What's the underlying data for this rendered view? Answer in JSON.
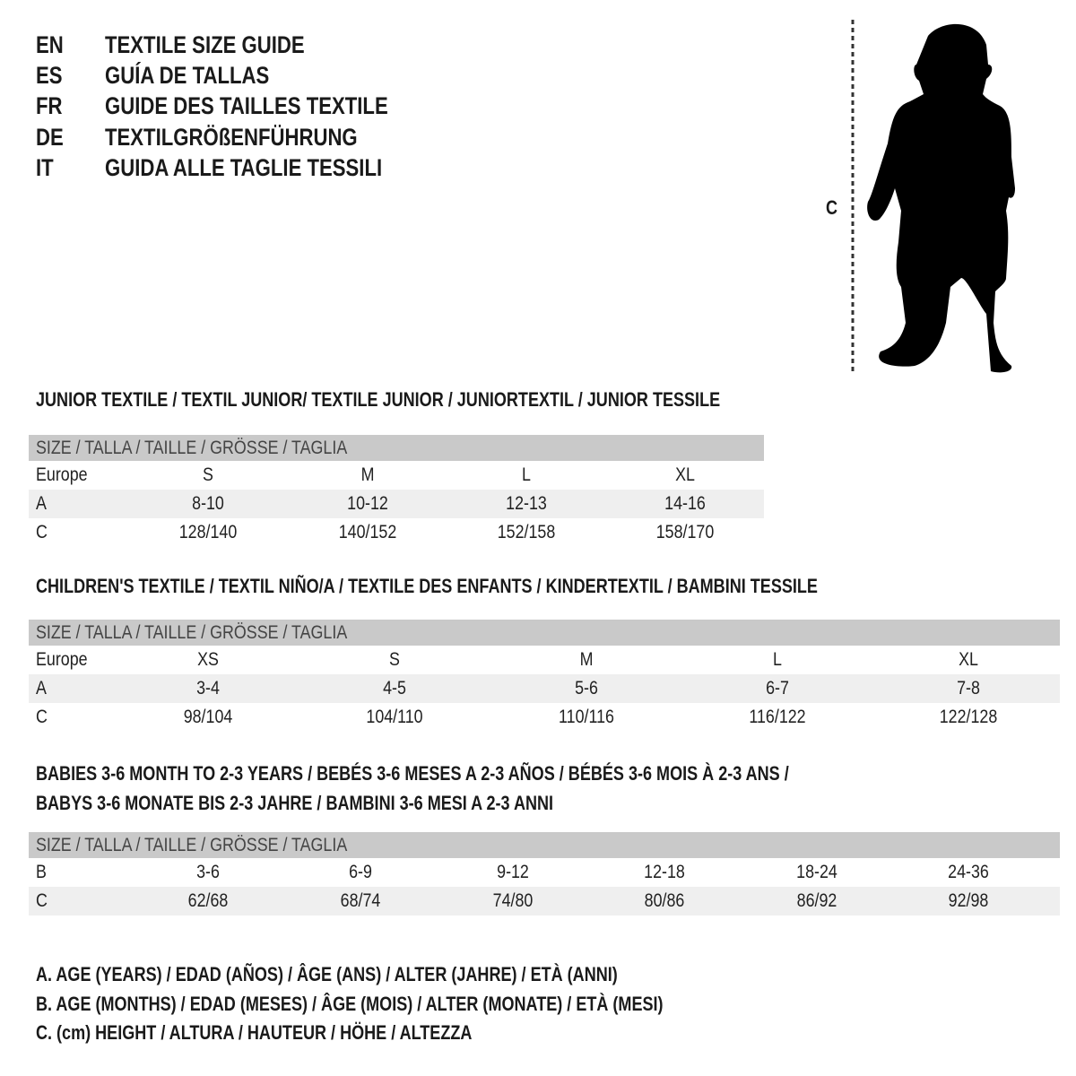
{
  "titles": [
    {
      "lang": "EN",
      "text": "TEXTILE SIZE GUIDE"
    },
    {
      "lang": "ES",
      "text": "GUÍA DE TALLAS"
    },
    {
      "lang": "FR",
      "text": "GUIDE DES TAILLES TEXTILE"
    },
    {
      "lang": "DE",
      "text": "TEXTILGRÖßENFÜHRUNG"
    },
    {
      "lang": "IT",
      "text": "GUIDA ALLE TAGLIE TESSILI"
    }
  ],
  "figure": {
    "label": "C"
  },
  "sections": [
    {
      "heading": [
        "JUNIOR TEXTILE / TEXTIL JUNIOR/ TEXTILE JUNIOR / JUNIORTEXTIL / JUNIOR TESSILE"
      ],
      "header": "SIZE / TALLA / TAILLE / GRÖSSE / TAGLIA",
      "rows": [
        {
          "label": "Europe",
          "values": [
            "S",
            "M",
            "L",
            "XL"
          ]
        },
        {
          "label": "A",
          "values": [
            "8-10",
            "10-12",
            "12-13",
            "14-16"
          ]
        },
        {
          "label": "C",
          "values": [
            "128/140",
            "140/152",
            "152/158",
            "158/170"
          ]
        }
      ]
    },
    {
      "heading": [
        "CHILDREN'S TEXTILE / TEXTIL NIÑO/A / TEXTILE DES ENFANTS / KINDERTEXTIL / BAMBINI TESSILE"
      ],
      "header": "SIZE / TALLA / TAILLE / GRÖSSE / TAGLIA",
      "rows": [
        {
          "label": "Europe",
          "values": [
            "XS",
            "S",
            "M",
            "L",
            "XL"
          ]
        },
        {
          "label": "A",
          "values": [
            "3-4",
            "4-5",
            "5-6",
            "6-7",
            "7-8"
          ]
        },
        {
          "label": "C",
          "values": [
            "98/104",
            "104/110",
            "110/116",
            "116/122",
            "122/128"
          ]
        }
      ]
    },
    {
      "heading": [
        "BABIES 3-6 MONTH TO 2-3 YEARS / BEBÉS 3-6 MESES A 2-3 AÑOS / BÉBÉS 3-6 MOIS À 2-3 ANS /",
        "BABYS 3-6 MONATE BIS 2-3 JAHRE / BAMBINI 3-6 MESI A 2-3 ANNI"
      ],
      "header": "SIZE / TALLA / TAILLE / GRÖSSE / TAGLIA",
      "rows": [
        {
          "label": "B",
          "values": [
            "3-6",
            "6-9",
            "9-12",
            "12-18",
            "18-24",
            "24-36"
          ]
        },
        {
          "label": "C",
          "values": [
            "62/68",
            "68/74",
            "74/80",
            "80/86",
            "86/92",
            "92/98"
          ]
        }
      ]
    }
  ],
  "legend": [
    "A. AGE (YEARS) / EDAD (AÑOS) / ÂGE (ANS) / ALTER (JAHRE) / ETÀ (ANNI)",
    "B. AGE (MONTHS) / EDAD (MESES) / ÂGE (MOIS) / ALTER (MONATE) / ETÀ (MESI)",
    "C. (cm) HEIGHT / ALTURA / HAUTEUR / HÖHE / ALTEZZA"
  ]
}
